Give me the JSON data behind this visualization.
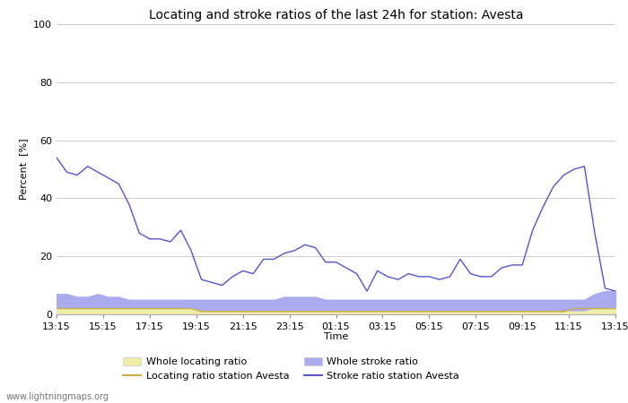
{
  "title": "Locating and stroke ratios of the last 24h for station: Avesta",
  "xlabel": "Time",
  "ylabel": "Percent  [%]",
  "ylim": [
    0,
    100
  ],
  "watermark": "www.lightningmaps.org",
  "tick_labels": [
    "13:15",
    "15:15",
    "17:15",
    "19:15",
    "21:15",
    "23:15",
    "01:15",
    "03:15",
    "05:15",
    "07:15",
    "09:15",
    "11:15",
    "13:15"
  ],
  "stroke_ratio_avesta": [
    54,
    49,
    48,
    51,
    49,
    47,
    45,
    38,
    28,
    26,
    26,
    25,
    29,
    22,
    12,
    11,
    10,
    13,
    15,
    14,
    19,
    19,
    21,
    22,
    24,
    23,
    18,
    18,
    16,
    14,
    8,
    15,
    13,
    12,
    14,
    13,
    13,
    12,
    13,
    19,
    14,
    13,
    13,
    16,
    17,
    17,
    29,
    37,
    44,
    48,
    50,
    51,
    28,
    9,
    8
  ],
  "locating_ratio_avesta": [
    2,
    2,
    2,
    2,
    2,
    2,
    2,
    2,
    2,
    2,
    2,
    2,
    2,
    2,
    1,
    1,
    1,
    1,
    1,
    1,
    1,
    1,
    1,
    1,
    1,
    1,
    1,
    1,
    1,
    1,
    1,
    1,
    1,
    1,
    1,
    1,
    1,
    1,
    1,
    1,
    1,
    1,
    1,
    1,
    1,
    1,
    1,
    1,
    1,
    1,
    2,
    2,
    2,
    2,
    2
  ],
  "whole_stroke_ratio": [
    7,
    7,
    6,
    6,
    7,
    6,
    6,
    5,
    5,
    5,
    5,
    5,
    5,
    5,
    5,
    5,
    5,
    5,
    5,
    5,
    5,
    5,
    6,
    6,
    6,
    6,
    5,
    5,
    5,
    5,
    5,
    5,
    5,
    5,
    5,
    5,
    5,
    5,
    5,
    5,
    5,
    5,
    5,
    5,
    5,
    5,
    5,
    5,
    5,
    5,
    5,
    5,
    7,
    8,
    8
  ],
  "whole_locating_ratio": [
    2,
    2,
    2,
    2,
    2,
    2,
    2,
    2,
    2,
    2,
    2,
    2,
    2,
    2,
    1,
    1,
    1,
    1,
    1,
    1,
    1,
    1,
    1,
    1,
    1,
    1,
    1,
    1,
    1,
    1,
    1,
    1,
    1,
    1,
    1,
    1,
    1,
    1,
    1,
    1,
    1,
    1,
    1,
    1,
    1,
    1,
    1,
    1,
    1,
    1,
    1,
    1,
    2,
    2,
    2
  ],
  "stroke_color": "#5555cc",
  "locating_color": "#ccaa44",
  "whole_stroke_fill_color": "#aaaaee",
  "whole_locating_fill_color": "#eeeeaa",
  "background_color": "#ffffff",
  "grid_color": "#cccccc",
  "title_fontsize": 10,
  "axis_fontsize": 8,
  "tick_fontsize": 8
}
